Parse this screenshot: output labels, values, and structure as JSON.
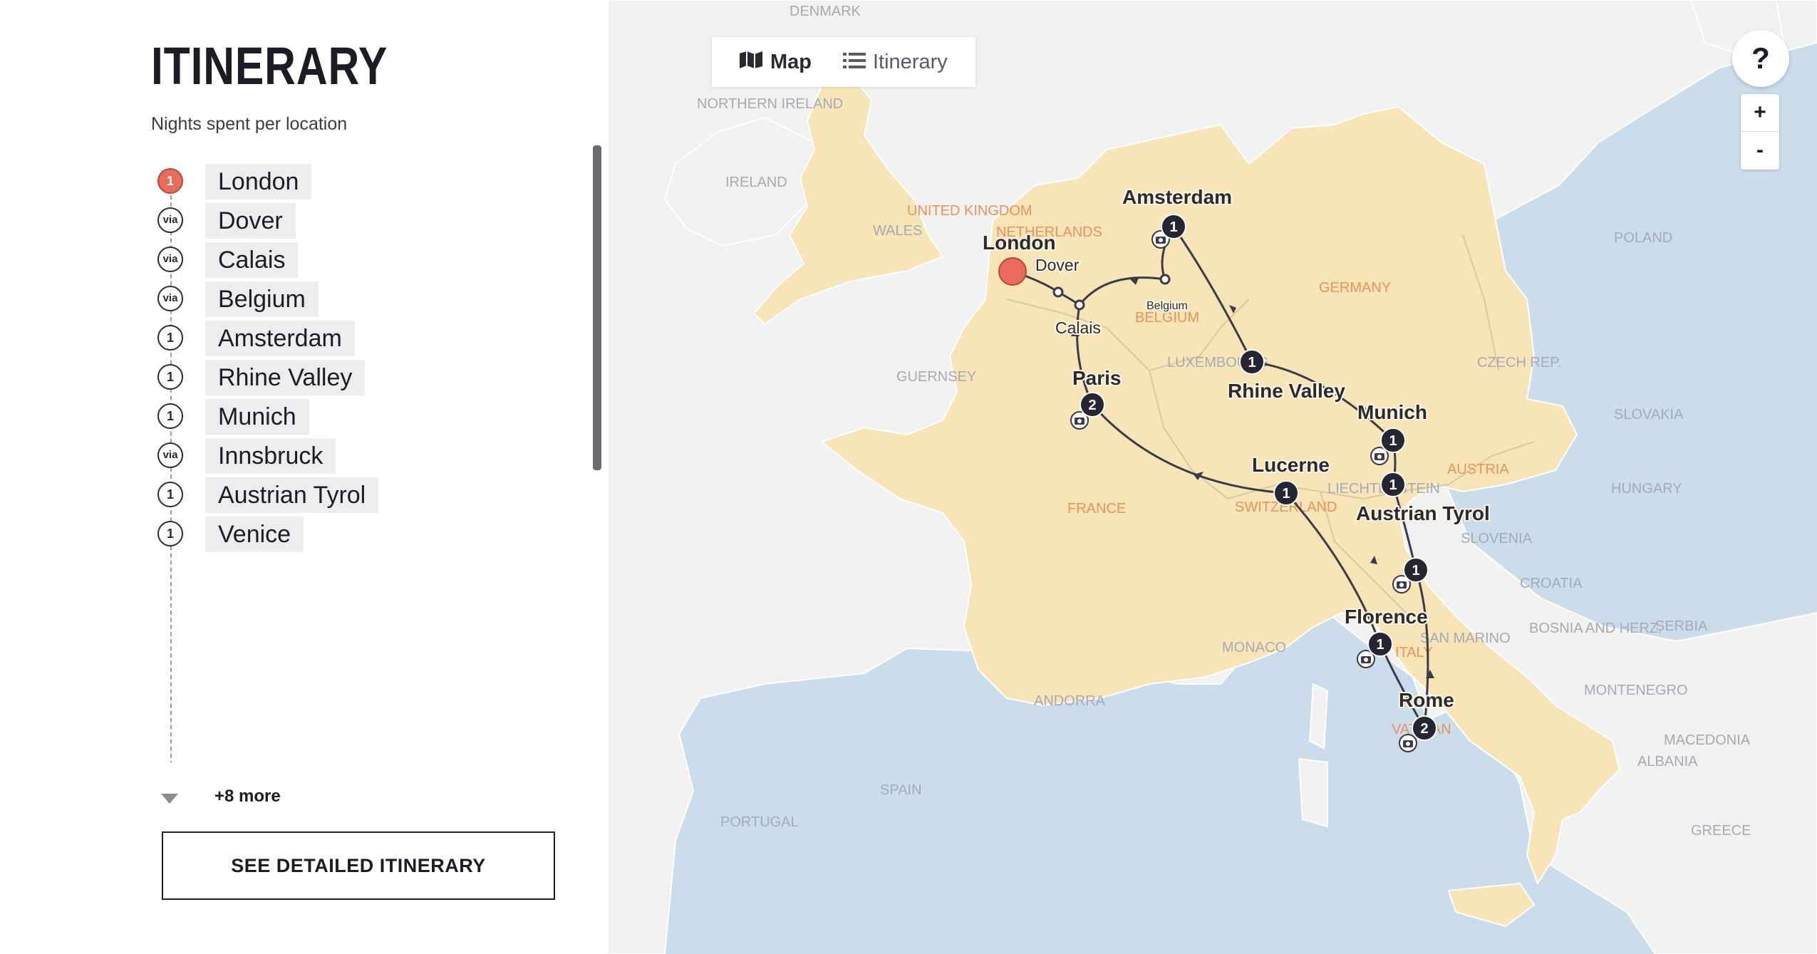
{
  "panel": {
    "title": "ITINERARY",
    "subtitle": "Nights spent per location",
    "stops": [
      {
        "name": "London",
        "nights": "1",
        "type": "first"
      },
      {
        "name": "Dover",
        "nights": "via",
        "type": "via"
      },
      {
        "name": "Calais",
        "nights": "via",
        "type": "via"
      },
      {
        "name": "Belgium",
        "nights": "via",
        "type": "via"
      },
      {
        "name": "Amsterdam",
        "nights": "1",
        "type": "stay"
      },
      {
        "name": "Rhine Valley",
        "nights": "1",
        "type": "stay"
      },
      {
        "name": "Munich",
        "nights": "1",
        "type": "stay"
      },
      {
        "name": "Innsbruck",
        "nights": "via",
        "type": "via"
      },
      {
        "name": "Austrian Tyrol",
        "nights": "1",
        "type": "stay"
      },
      {
        "name": "Venice",
        "nights": "1",
        "type": "stay"
      }
    ],
    "more_label": "+8 more",
    "detail_button": "SEE DETAILED ITINERARY"
  },
  "map": {
    "toggle": {
      "map_label": "Map",
      "itinerary_label": "Itinerary"
    },
    "help_label": "?",
    "zoom_in_label": "+",
    "zoom_out_label": "-",
    "colors": {
      "water": "#cbdcea",
      "land": "#f1f1f1",
      "tour_land": "#f7e4b7",
      "route": "#3a3a48",
      "marker": "#262633",
      "start": "#e96b5b",
      "tour_label": "#e6935c"
    },
    "country_labels": [
      {
        "text": "DENMARK",
        "tour": false
      },
      {
        "text": "NORTHERN IRELAND",
        "tour": false
      },
      {
        "text": "IRELAND",
        "tour": false
      },
      {
        "text": "UNITED KINGDOM",
        "tour": true
      },
      {
        "text": "WALES",
        "tour": false
      },
      {
        "text": "NETHERLANDS",
        "tour": true
      },
      {
        "text": "GERMANY",
        "tour": true
      },
      {
        "text": "POLAND",
        "tour": false
      },
      {
        "text": "BELGIUM",
        "tour": true
      },
      {
        "text": "LUXEMBOURG",
        "tour": false
      },
      {
        "text": "GUERNSEY",
        "tour": false
      },
      {
        "text": "CZECH REP.",
        "tour": false
      },
      {
        "text": "SLOVAKIA",
        "tour": false
      },
      {
        "text": "AUSTRIA",
        "tour": true
      },
      {
        "text": "HUNGARY",
        "tour": false
      },
      {
        "text": "LIECHTENSTEIN",
        "tour": false
      },
      {
        "text": "FRANCE",
        "tour": true
      },
      {
        "text": "SWITZERLAND",
        "tour": true
      },
      {
        "text": "SLOVENIA",
        "tour": false
      },
      {
        "text": "CROATIA",
        "tour": false
      },
      {
        "text": "BOSNIA AND HERZ.",
        "tour": false
      },
      {
        "text": "SERBIA",
        "tour": false
      },
      {
        "text": "MONACO",
        "tour": false
      },
      {
        "text": "SAN MARINO",
        "tour": false
      },
      {
        "text": "ITALY",
        "tour": true
      },
      {
        "text": "MONTENEGRO",
        "tour": false
      },
      {
        "text": "ANDORRA",
        "tour": false
      },
      {
        "text": "MACEDONIA",
        "tour": false
      },
      {
        "text": "ALBANIA",
        "tour": false
      },
      {
        "text": "SPAIN",
        "tour": false
      },
      {
        "text": "PORTUGAL",
        "tour": false
      },
      {
        "text": "VATICAN",
        "tour": true
      },
      {
        "text": "GREECE",
        "tour": false
      }
    ],
    "cities": [
      {
        "name": "London",
        "nights": ""
      },
      {
        "name": "Dover",
        "nights": ""
      },
      {
        "name": "Calais",
        "nights": ""
      },
      {
        "name": "Belgium",
        "nights": ""
      },
      {
        "name": "Amsterdam",
        "nights": "1"
      },
      {
        "name": "Rhine Valley",
        "nights": "1"
      },
      {
        "name": "Munich",
        "nights": "1"
      },
      {
        "name": "Austrian Tyrol",
        "nights": "1"
      },
      {
        "name": "Venice",
        "nights": "1"
      },
      {
        "name": "Rome",
        "nights": "2"
      },
      {
        "name": "Florence",
        "nights": "1"
      },
      {
        "name": "Lucerne",
        "nights": "1"
      },
      {
        "name": "Paris",
        "nights": "2"
      }
    ]
  }
}
